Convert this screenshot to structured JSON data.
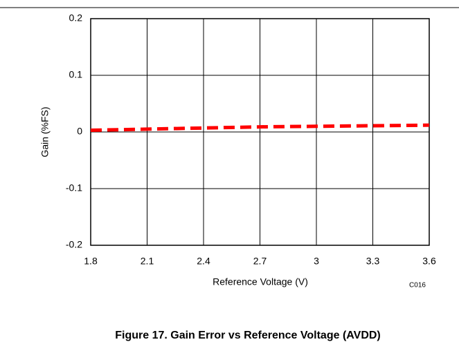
{
  "chart_data": {
    "type": "line",
    "caption": "Figure 17. Gain Error vs Reference Voltage (AVDD)",
    "xlabel": "Reference Voltage (V)",
    "ylabel": "Gain (%FS)",
    "annotation": "C016",
    "x": [
      1.8,
      2.1,
      2.4,
      2.7,
      3.0,
      3.3,
      3.6
    ],
    "series": [
      {
        "name": "Gain",
        "color": "#ff0000",
        "values": [
          0.003,
          0.005,
          0.007,
          0.009,
          0.01,
          0.011,
          0.012
        ]
      }
    ],
    "xlim": [
      1.8,
      3.6
    ],
    "xticks": [
      1.8,
      2.1,
      2.4,
      2.7,
      3,
      3.3,
      3.6
    ],
    "ylim": [
      -0.2,
      0.2
    ],
    "yticks": [
      -0.2,
      -0.1,
      0,
      0.1,
      0.2
    ],
    "grid": true
  }
}
